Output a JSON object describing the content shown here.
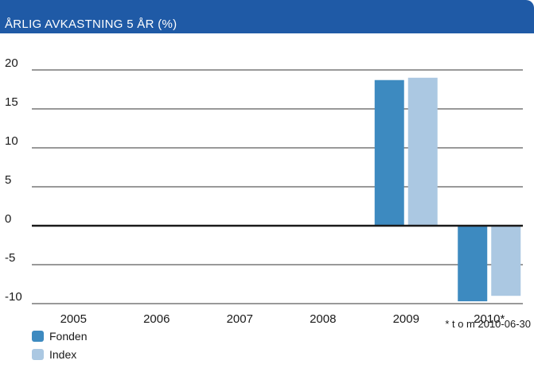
{
  "chart_data": {
    "type": "bar",
    "title": "ÅRLIG AVKASTNING 5 ÅR (%)",
    "categories": [
      "2005",
      "2006",
      "2007",
      "2008",
      "2009",
      "2010*"
    ],
    "series": [
      {
        "name": "Fonden",
        "values": [
          0,
          0,
          0,
          0,
          18.7,
          -9.7
        ]
      },
      {
        "name": "Index",
        "values": [
          0,
          0,
          0,
          0,
          19.0,
          -9.0
        ]
      }
    ],
    "yticks": [
      "20",
      "15",
      "10",
      "5",
      "0",
      "-5",
      "-10"
    ],
    "ylim": [
      -10,
      20
    ],
    "grid": true,
    "legend_position": "bottom-left",
    "footnote": "* t o m 2010-06-30",
    "colors": {
      "Fonden": "#3d8ac0",
      "Index": "#abc8e2",
      "title_bar": "#1f5aa6"
    }
  }
}
